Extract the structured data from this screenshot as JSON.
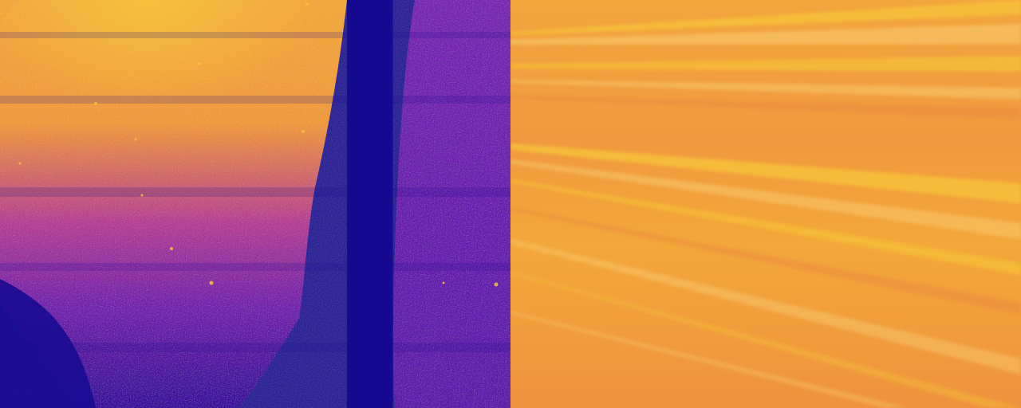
{
  "image": {
    "panels": [
      {
        "id": "left",
        "description_name": "thermal-colormap-panel",
        "palette": {
          "deep": "#150a90",
          "mid": "#6a1fb0",
          "warm": "#c8408a",
          "hot": "#f09a3a",
          "bright": "#f7c23c"
        }
      },
      {
        "id": "right",
        "description_name": "radial-streak-panel",
        "palette": {
          "base": "#f0993e",
          "streak_light": "#f6bf3a",
          "streak_pale": "#f8c96b",
          "streak_dark": "#e98a3c"
        }
      }
    ]
  }
}
